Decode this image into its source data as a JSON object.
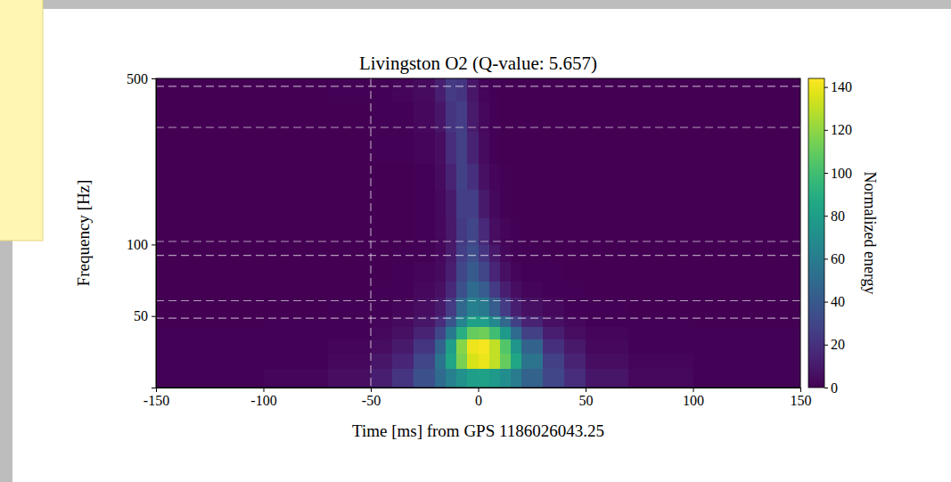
{
  "chart_data": {
    "type": "heatmap",
    "title": "Livingston O2 (Q-value: 5.657)",
    "x_label": "Time [ms] from GPS 1186026043.25",
    "y_label": "Frequency [Hz]",
    "colorbar_label": "Normalized energy",
    "log": "y",
    "xlim": [
      -150,
      150
    ],
    "xticks": [
      -150,
      -100,
      -50,
      0,
      50,
      100,
      150
    ],
    "ylim": [
      25,
      500
    ],
    "yticks": [
      50,
      100,
      500
    ],
    "clim": [
      0,
      144
    ],
    "cticks": [
      0,
      20,
      40,
      60,
      80,
      100,
      120,
      140
    ],
    "reference_lines": {
      "x": [
        -50
      ],
      "y": [
        463,
        311,
        103,
        90,
        58,
        49
      ]
    },
    "x_edges": [
      -150,
      -100,
      -70,
      -50,
      -40,
      -30,
      -20,
      -15,
      -10,
      -5,
      0,
      5,
      10,
      15,
      20,
      30,
      40,
      50,
      70,
      100,
      150
    ],
    "y_edges": [
      25,
      30,
      35,
      40,
      45,
      50,
      60,
      70,
      85,
      100,
      130,
      170,
      220,
      300,
      400,
      500
    ],
    "z": [
      [
        1,
        2,
        5,
        12,
        22,
        35,
        50,
        62,
        72,
        80,
        82,
        78,
        70,
        60,
        45,
        30,
        18,
        8,
        3,
        1
      ],
      [
        1,
        1,
        3,
        8,
        15,
        30,
        55,
        85,
        115,
        135,
        140,
        130,
        110,
        85,
        55,
        28,
        14,
        5,
        2,
        1
      ],
      [
        1,
        1,
        2,
        5,
        10,
        22,
        45,
        80,
        118,
        140,
        142,
        130,
        105,
        75,
        45,
        20,
        9,
        3,
        1,
        1
      ],
      [
        1,
        1,
        1,
        3,
        6,
        14,
        30,
        58,
        90,
        110,
        112,
        100,
        78,
        50,
        28,
        12,
        5,
        2,
        1,
        1
      ],
      [
        0,
        1,
        1,
        2,
        4,
        8,
        18,
        38,
        65,
        82,
        80,
        68,
        48,
        28,
        14,
        6,
        3,
        1,
        1,
        0
      ],
      [
        0,
        0,
        1,
        1,
        2,
        5,
        10,
        25,
        48,
        62,
        58,
        42,
        25,
        12,
        6,
        3,
        1,
        1,
        0,
        0
      ],
      [
        0,
        0,
        0,
        1,
        1,
        3,
        6,
        16,
        35,
        50,
        42,
        25,
        12,
        5,
        2,
        1,
        1,
        0,
        0,
        0
      ],
      [
        0,
        0,
        0,
        0,
        1,
        2,
        4,
        12,
        30,
        40,
        30,
        15,
        6,
        2,
        1,
        1,
        0,
        0,
        0,
        0
      ],
      [
        0,
        0,
        0,
        0,
        1,
        1,
        3,
        10,
        26,
        34,
        22,
        9,
        3,
        1,
        1,
        0,
        0,
        0,
        0,
        0
      ],
      [
        0,
        0,
        0,
        0,
        0,
        1,
        3,
        9,
        24,
        30,
        16,
        5,
        2,
        1,
        0,
        0,
        0,
        0,
        0,
        0
      ],
      [
        0,
        0,
        0,
        0,
        0,
        1,
        3,
        10,
        26,
        26,
        10,
        3,
        1,
        0,
        0,
        0,
        0,
        0,
        0,
        0
      ],
      [
        0,
        0,
        0,
        0,
        0,
        1,
        4,
        14,
        28,
        20,
        6,
        2,
        1,
        0,
        0,
        0,
        0,
        0,
        0,
        0
      ],
      [
        0,
        0,
        0,
        1,
        1,
        2,
        5,
        18,
        28,
        14,
        4,
        1,
        0,
        0,
        0,
        0,
        0,
        0,
        0,
        0
      ],
      [
        0,
        0,
        0,
        1,
        1,
        3,
        8,
        22,
        26,
        10,
        3,
        1,
        0,
        0,
        0,
        0,
        0,
        0,
        0,
        0
      ],
      [
        0,
        0,
        1,
        1,
        2,
        4,
        12,
        25,
        22,
        8,
        2,
        1,
        0,
        0,
        0,
        0,
        0,
        0,
        0,
        0
      ]
    ]
  }
}
